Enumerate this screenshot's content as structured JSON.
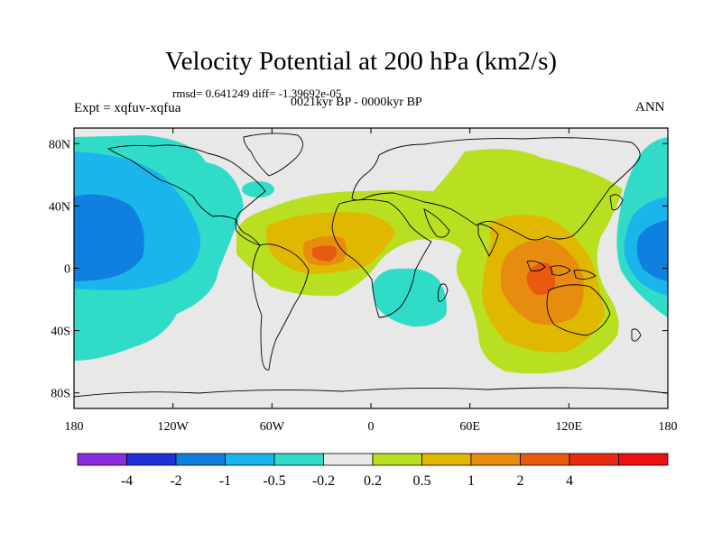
{
  "header": {
    "title": "Velocity Potential at 200 hPa (km2/s)",
    "stats": "rmsd= 0.641249  diff= -1.39692e-05",
    "experiment": "Expt = xqfuv-xqfua",
    "period": "0021kyr BP - 0000kyr BP",
    "season": "ANN"
  },
  "axes": {
    "y_ticks": [
      {
        "label": "80N",
        "lat": 80
      },
      {
        "label": "40N",
        "lat": 40
      },
      {
        "label": "0",
        "lat": 0
      },
      {
        "label": "40S",
        "lat": -40
      },
      {
        "label": "80S",
        "lat": -80
      }
    ],
    "x_ticks": [
      {
        "label": "180",
        "lon": -180
      },
      {
        "label": "120W",
        "lon": -120
      },
      {
        "label": "60W",
        "lon": -60
      },
      {
        "label": "0",
        "lon": 0
      },
      {
        "label": "60E",
        "lon": 60
      },
      {
        "label": "120E",
        "lon": 120
      },
      {
        "label": "180",
        "lon": 180
      }
    ],
    "lat_range": [
      -90,
      90
    ],
    "lon_range": [
      -180,
      180
    ]
  },
  "colorbar": {
    "colors": [
      "#8a2be2",
      "#2030d8",
      "#1080e0",
      "#1ab5ea",
      "#30dcc8",
      "#e8e8e8",
      "#b8e020",
      "#e0b800",
      "#e88c10",
      "#e85a10",
      "#e82a10",
      "#ee1010"
    ],
    "labels": [
      "-4",
      "-2",
      "-1",
      "-0.5",
      "-0.2",
      "0.2",
      "0.5",
      "1",
      "2",
      "4"
    ]
  },
  "contour_levels": [
    -4,
    -2,
    -1,
    -0.5,
    -0.2,
    0.2,
    0.5,
    1,
    2,
    4
  ],
  "field_colors": {
    "neutral": "#e8e8e8",
    "neg_02": "#30dcc8",
    "neg_05": "#1ab5ea",
    "neg_1": "#1080e0",
    "pos_02": "#b8e020",
    "pos_05": "#e0b800",
    "pos_1": "#e88c10",
    "pos_2": "#e85a10"
  }
}
